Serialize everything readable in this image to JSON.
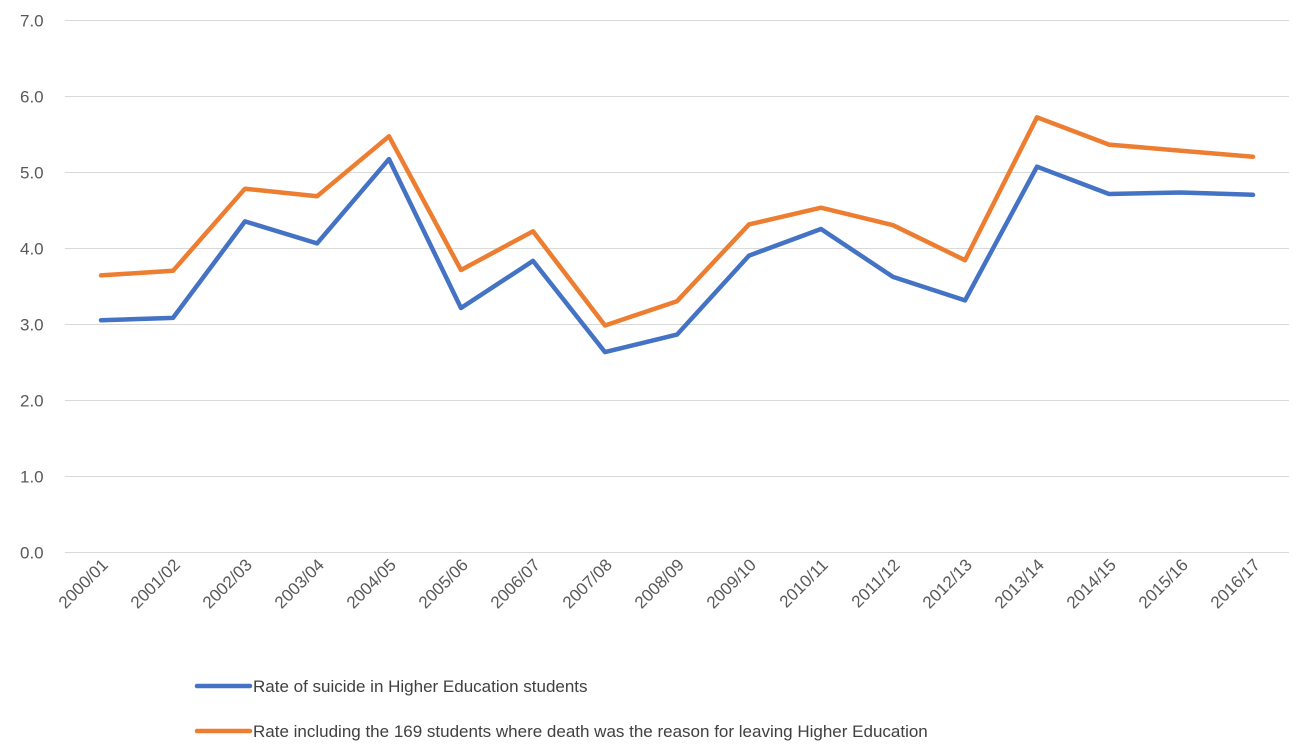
{
  "chart_data": {
    "type": "line",
    "categories": [
      "2000/01",
      "2001/02",
      "2002/03",
      "2003/04",
      "2004/05",
      "2005/06",
      "2006/07",
      "2007/08",
      "2008/09",
      "2009/10",
      "2010/11",
      "2011/12",
      "2012/13",
      "2013/14",
      "2014/15",
      "2015/16",
      "2016/17"
    ],
    "ylim": [
      0,
      7
    ],
    "yticks": [
      "0.0",
      "1.0",
      "2.0",
      "3.0",
      "4.0",
      "5.0",
      "6.0",
      "7.0"
    ],
    "grid": true,
    "legend_position": "bottom",
    "series": [
      {
        "name": "Rate of suicide in Higher Education students",
        "color": "#4472C4",
        "values": [
          3.05,
          3.08,
          4.35,
          4.06,
          5.17,
          3.21,
          3.83,
          2.63,
          2.86,
          3.9,
          4.25,
          3.62,
          3.31,
          5.07,
          4.71,
          4.73,
          4.7
        ]
      },
      {
        "name": "Rate including the 169 students where death was the reason for leaving Higher Education",
        "color": "#ED7D31",
        "values": [
          3.64,
          3.7,
          4.78,
          4.68,
          5.47,
          3.71,
          4.22,
          2.98,
          3.3,
          4.31,
          4.53,
          4.3,
          3.84,
          5.72,
          5.36,
          5.28,
          5.2
        ]
      }
    ]
  }
}
